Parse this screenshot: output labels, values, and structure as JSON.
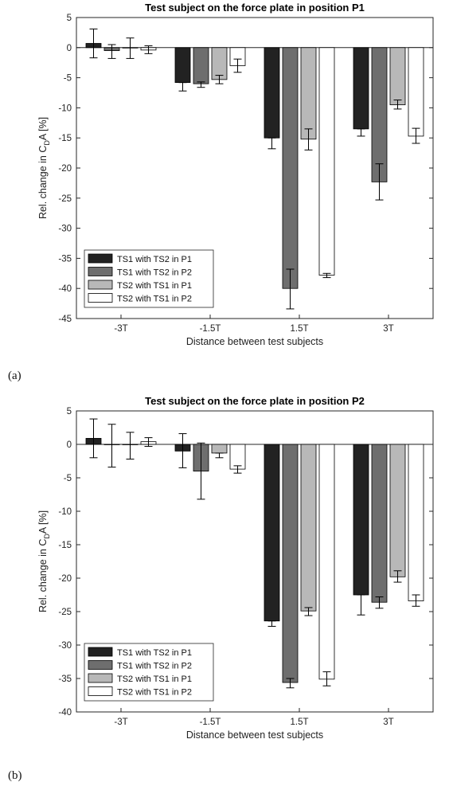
{
  "colors": {
    "series": [
      "#222222",
      "#6e6e6e",
      "#b8b8b8",
      "#ffffff"
    ],
    "stroke": "#000000"
  },
  "panels": [
    {
      "label": "(a)"
    },
    {
      "label": "(b)"
    }
  ],
  "chart_data": [
    {
      "type": "bar",
      "title": "Test subject on the force plate in position P1",
      "xlabel": "Distance between test subjects",
      "ylabel_main": "Rel. change in C",
      "ylabel_sub": "D",
      "ylabel_tail": "A [%]",
      "categories": [
        "-3T",
        "-1.5T",
        "1.5T",
        "3T"
      ],
      "ylim": [
        -45,
        5
      ],
      "yticks": [
        5,
        0,
        -5,
        -10,
        -15,
        -20,
        -25,
        -30,
        -35,
        -40,
        -45
      ],
      "legend_position": "bottom-left",
      "series": [
        {
          "name": "TS1 with TS2 in P1",
          "values": [
            0.7,
            -5.8,
            -15.0,
            -13.5
          ],
          "err_low": [
            -1.7,
            -7.2,
            -16.8,
            -14.7
          ],
          "err_high": [
            3.1,
            -5.8,
            -15.0,
            -13.5
          ]
        },
        {
          "name": "TS1 with TS2 in P2",
          "values": [
            -0.5,
            -6.0,
            -40.0,
            -22.3
          ],
          "err_low": [
            -1.8,
            -6.6,
            -43.4,
            -25.3
          ],
          "err_high": [
            0.5,
            -5.7,
            -36.8,
            -19.3
          ]
        },
        {
          "name": "TS2 with TS1 in P1",
          "values": [
            0.0,
            -5.3,
            -15.2,
            -9.5
          ],
          "err_low": [
            -1.8,
            -6.0,
            -17.0,
            -10.2
          ],
          "err_high": [
            1.6,
            -4.6,
            -13.5,
            -8.7
          ]
        },
        {
          "name": "TS2 with TS1 in P2",
          "values": [
            -0.4,
            -3.0,
            -37.8,
            -14.7
          ],
          "err_low": [
            -1.0,
            -4.1,
            -38.2,
            -15.9
          ],
          "err_high": [
            0.3,
            -1.9,
            -37.5,
            -13.4
          ]
        }
      ]
    },
    {
      "type": "bar",
      "title": "Test subject on the force plate in position P2",
      "xlabel": "Distance between test subjects",
      "ylabel_main": "Rel. change in C",
      "ylabel_sub": "D",
      "ylabel_tail": "A [%]",
      "categories": [
        "-3T",
        "-1.5T",
        "1.5T",
        "3T"
      ],
      "ylim": [
        -40,
        5
      ],
      "yticks": [
        5,
        0,
        -5,
        -10,
        -15,
        -20,
        -25,
        -30,
        -35,
        -40
      ],
      "legend_position": "bottom-left",
      "series": [
        {
          "name": "TS1 with TS2 in P1",
          "values": [
            0.9,
            -1.0,
            -26.4,
            -22.5
          ],
          "err_low": [
            -2.0,
            -3.5,
            -27.2,
            -25.5
          ],
          "err_high": [
            3.8,
            1.6,
            -26.4,
            -22.5
          ]
        },
        {
          "name": "TS1 with TS2 in P2",
          "values": [
            0.0,
            -4.0,
            -35.6,
            -23.6
          ],
          "err_low": [
            -3.4,
            -8.2,
            -36.4,
            -24.5
          ],
          "err_high": [
            3.0,
            0.2,
            -35.0,
            -22.8
          ]
        },
        {
          "name": "TS2 with TS1 in P1",
          "values": [
            0.0,
            -1.3,
            -24.9,
            -19.8
          ],
          "err_low": [
            -2.2,
            -2.0,
            -25.6,
            -20.6
          ],
          "err_high": [
            1.8,
            -1.3,
            -24.4,
            -18.9
          ]
        },
        {
          "name": "TS2 with TS1 in P2",
          "values": [
            0.4,
            -3.7,
            -35.1,
            -23.4
          ],
          "err_low": [
            -0.3,
            -4.3,
            -36.1,
            -24.2
          ],
          "err_high": [
            1.0,
            -3.2,
            -34.0,
            -22.5
          ]
        }
      ]
    }
  ]
}
